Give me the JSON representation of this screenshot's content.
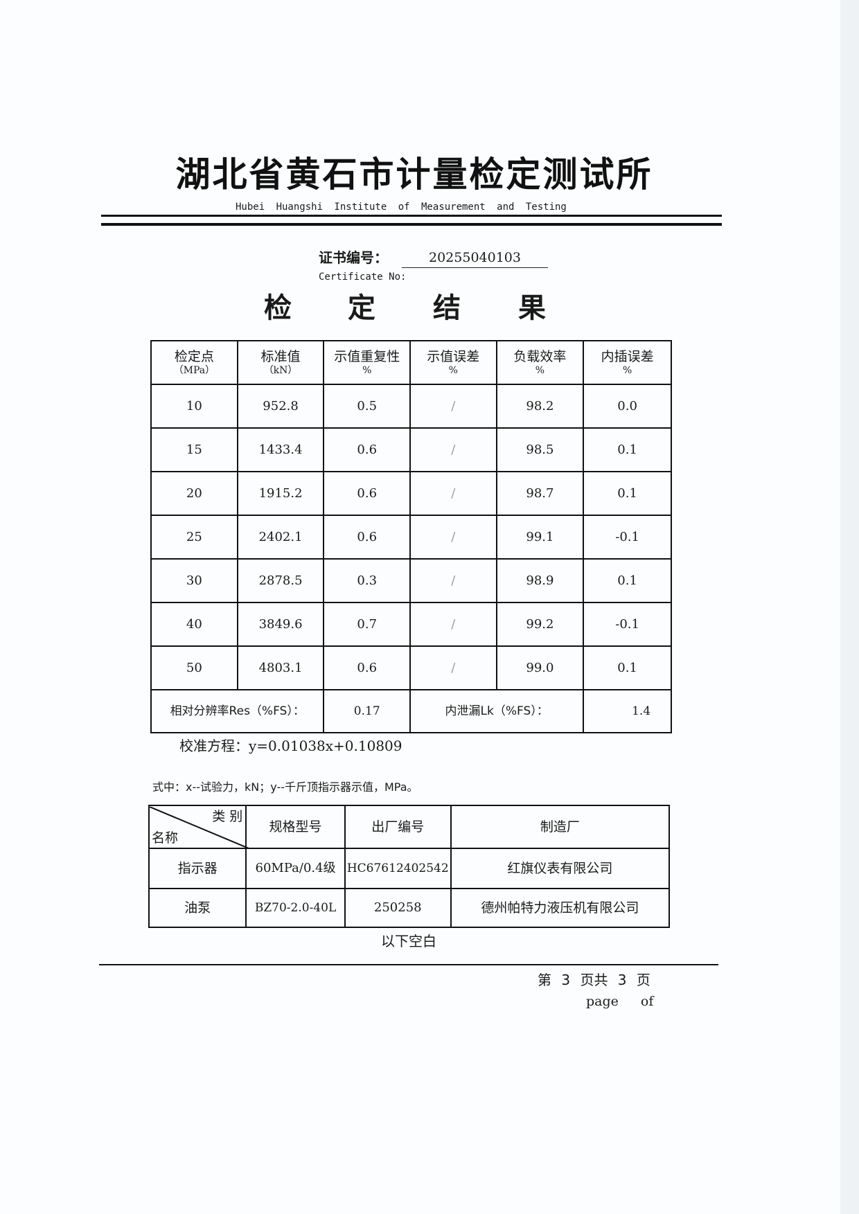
{
  "header": {
    "title": "湖北省黄石市计量检定测试所",
    "subtitle": "Hubei Huangshi Institute of Measurement and Testing"
  },
  "certificate": {
    "label": "证书编号：",
    "label_en": "Certificate No:",
    "number": "20255040103"
  },
  "heading": [
    "检",
    "定",
    "结",
    "果"
  ],
  "results_table": {
    "headers": [
      {
        "label": "检定点",
        "unit": "（MPa）"
      },
      {
        "label": "标准值",
        "unit": "（kN）"
      },
      {
        "label": "示值重复性",
        "unit": "%"
      },
      {
        "label": "示值误差",
        "unit": "%"
      },
      {
        "label": "负载效率",
        "unit": "%"
      },
      {
        "label": "内插误差",
        "unit": "%"
      }
    ],
    "rows": [
      [
        "10",
        "952.8",
        "0.5",
        "/",
        "98.2",
        "0.0"
      ],
      [
        "15",
        "1433.4",
        "0.6",
        "/",
        "98.5",
        "0.1"
      ],
      [
        "20",
        "1915.2",
        "0.6",
        "/",
        "98.7",
        "0.1"
      ],
      [
        "25",
        "2402.1",
        "0.6",
        "/",
        "99.1",
        "-0.1"
      ],
      [
        "30",
        "2878.5",
        "0.3",
        "/",
        "98.9",
        "0.1"
      ],
      [
        "40",
        "3849.6",
        "0.7",
        "/",
        "99.2",
        "-0.1"
      ],
      [
        "50",
        "4803.1",
        "0.6",
        "/",
        "99.0",
        "0.1"
      ]
    ],
    "resolution_label": "相对分辨率Res（%FS）：",
    "resolution_value": "0.17",
    "leak_label": "内泄漏Lk（%FS）：",
    "leak_value": "1.4"
  },
  "equation": {
    "label": "校准方程：",
    "formula": "y=0.01038x+0.10809"
  },
  "note": "式中：x--试验力，kN；y--千斤顶指示器示值，MPa。",
  "equipment_table": {
    "corner_top": "类 别",
    "corner_bottom": "名称",
    "headers": [
      "规格型号",
      "出厂编号",
      "制造厂"
    ],
    "rows": [
      [
        "指示器",
        "60MPa/0.4级",
        "HC67612402542",
        "红旗仪表有限公司"
      ],
      [
        "油泵",
        "BZ70-2.0-40L",
        "250258",
        "德州帕特力液压机有限公司"
      ]
    ]
  },
  "blank_note": "以下空白",
  "footer": {
    "page_cn": "第 3 页共 3 页",
    "page_en": "page of"
  }
}
